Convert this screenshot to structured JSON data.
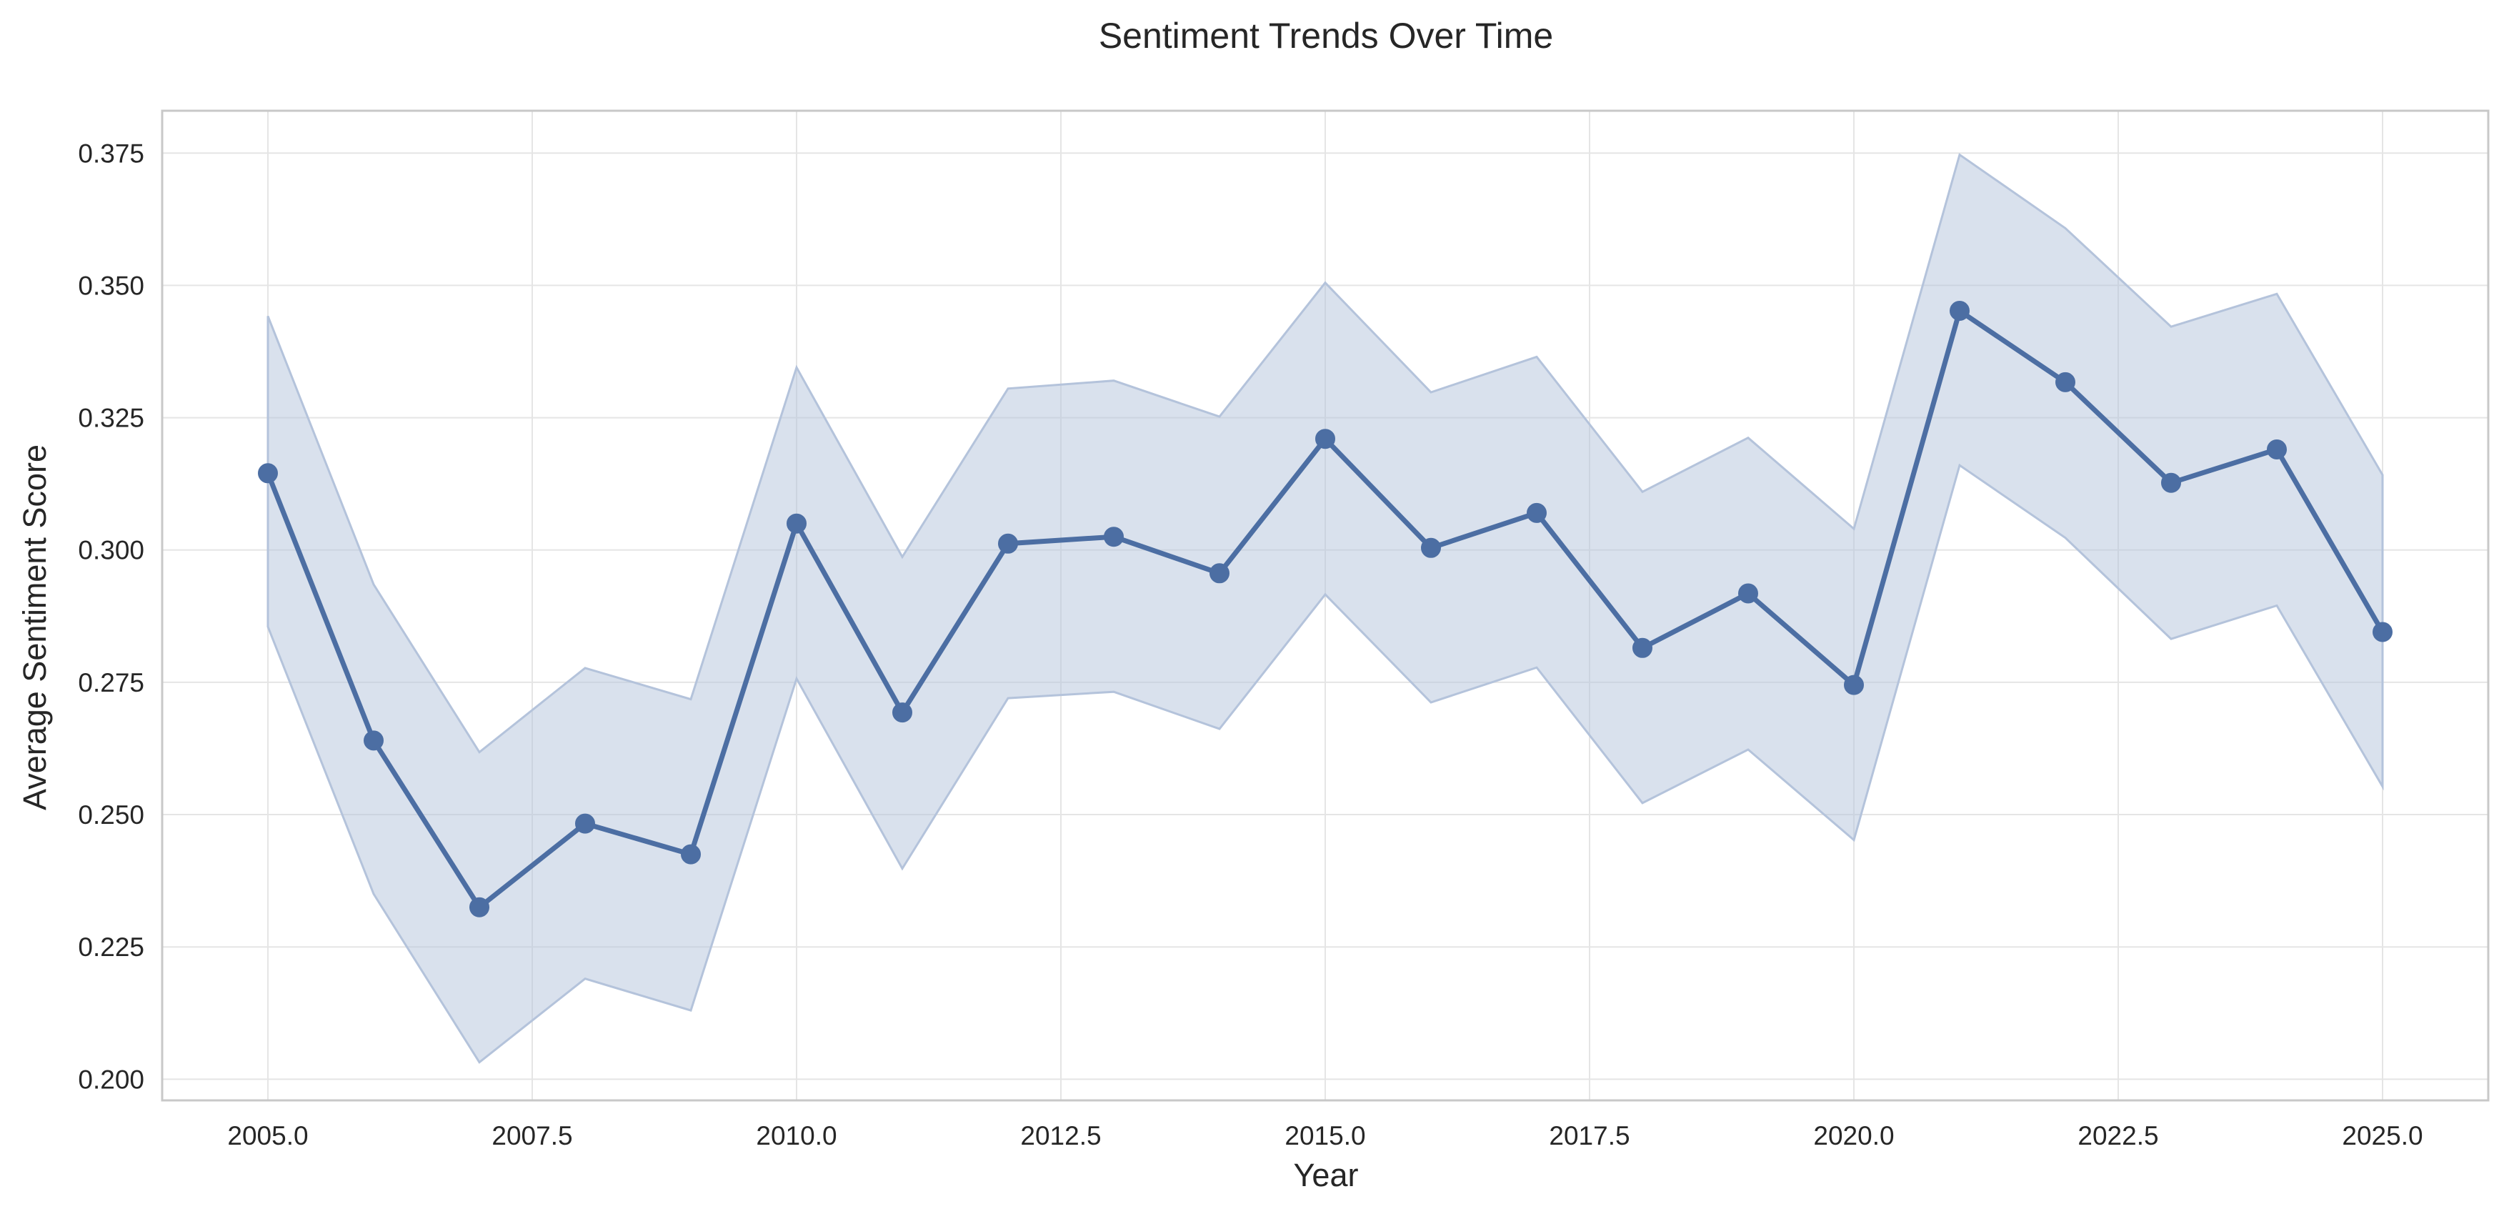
{
  "chart_data": {
    "type": "line",
    "title": "Sentiment Trends Over Time",
    "xlabel": "Year",
    "ylabel": "Average Sentiment Score",
    "xlim": [
      2004.0,
      2026.0
    ],
    "ylim": [
      0.196,
      0.383
    ],
    "xticks": [
      2005.0,
      2007.5,
      2010.0,
      2012.5,
      2015.0,
      2017.5,
      2020.0,
      2022.5,
      2025.0
    ],
    "xtick_labels": [
      "2005.0",
      "2007.5",
      "2010.0",
      "2012.5",
      "2015.0",
      "2017.5",
      "2020.0",
      "2022.5",
      "2025.0"
    ],
    "yticks": [
      0.2,
      0.225,
      0.25,
      0.275,
      0.3,
      0.325,
      0.35,
      0.375
    ],
    "ytick_labels": [
      "0.200",
      "0.225",
      "0.250",
      "0.275",
      "0.300",
      "0.325",
      "0.350",
      "0.375"
    ],
    "grid": true,
    "legend": "none",
    "colors": {
      "line": "#4c6ea3",
      "band": "#b4c3db",
      "grid": "#e5e5e5",
      "axes": "#c8c8c8",
      "text": "#262626"
    },
    "series": [
      {
        "x": [
          2005,
          2006,
          2007,
          2008,
          2009,
          2010,
          2011,
          2012,
          2013,
          2014,
          2015,
          2016,
          2017,
          2018,
          2019,
          2020,
          2021,
          2022,
          2023,
          2024,
          2025
        ],
        "values": [
          0.3145,
          0.264,
          0.2325,
          0.2483,
          0.2425,
          0.305,
          0.2693,
          0.3012,
          0.3025,
          0.2956,
          0.321,
          0.3004,
          0.307,
          0.2815,
          0.2918,
          0.2745,
          0.3452,
          0.3317,
          0.3127,
          0.319,
          0.2845
        ],
        "lower": [
          0.2855,
          0.235,
          0.2032,
          0.219,
          0.213,
          0.2757,
          0.2398,
          0.272,
          0.2732,
          0.2662,
          0.2916,
          0.2712,
          0.2778,
          0.2522,
          0.2623,
          0.2452,
          0.316,
          0.3023,
          0.2832,
          0.2895,
          0.2553
        ],
        "upper": [
          0.3442,
          0.2935,
          0.2618,
          0.2777,
          0.2718,
          0.3345,
          0.2987,
          0.3305,
          0.332,
          0.3252,
          0.3505,
          0.3298,
          0.3365,
          0.311,
          0.3212,
          0.304,
          0.3747,
          0.3608,
          0.3422,
          0.3484,
          0.3142
        ]
      }
    ]
  }
}
